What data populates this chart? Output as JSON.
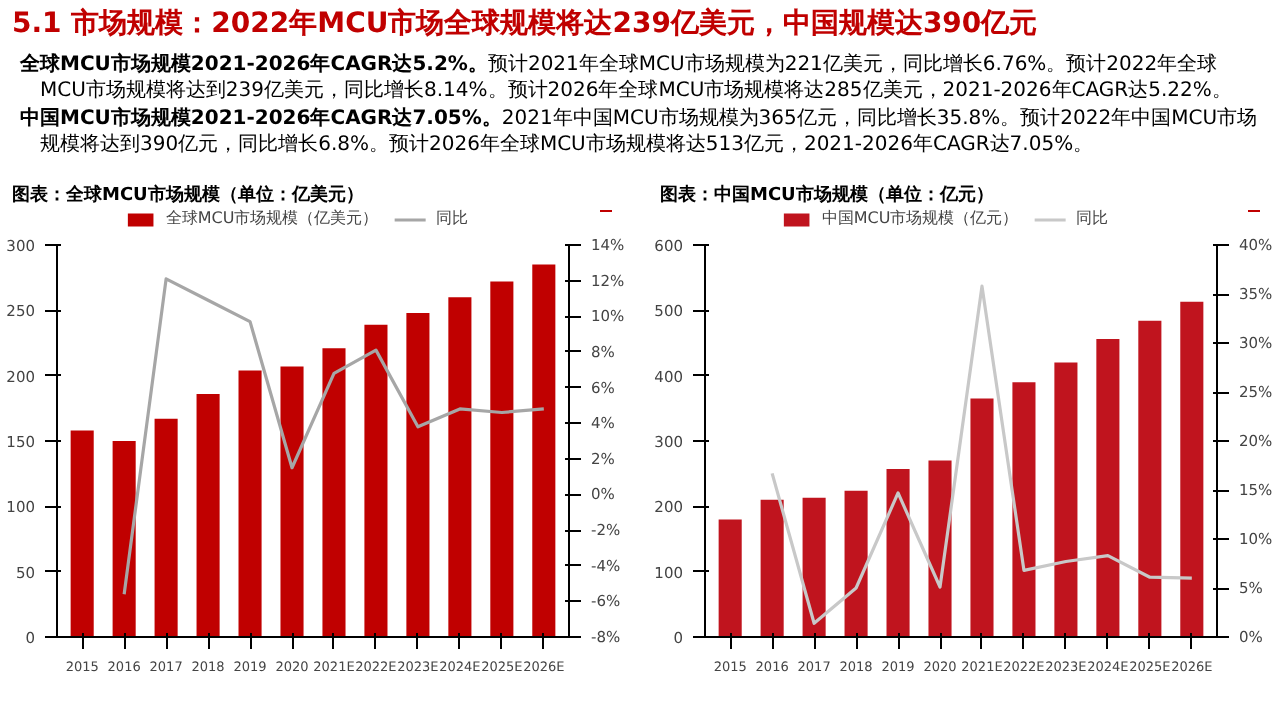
{
  "chart_data": [
    {
      "type": "other",
      "title": "5.1 市场规模：2022年MCU市场全球规模将达239亿美元，中国规模达390亿元",
      "annotations": [
        "全球MCU市场规模2021-2026年CAGR达5.2%。预计2021年全球MCU市场规模为221亿美元，同比增长6.76%。预计2022年全球MCU市场规模将达到239亿美元，同比增长8.14%。预计2026年全球MCU市场规模将达285亿美元，2021-2026年CAGR达5.22%。",
        "中国MCU市场规模2021-2026年CAGR达7.05%。2021年中国MCU市场规模为365亿元，同比增长35.8%。预计2022年中国MCU市场规模将达到390亿元，同比增长6.8%。预计2026年全球MCU市场规模将达513亿元，2021-2026年CAGR达7.05%。"
      ]
    },
    {
      "type": "bar",
      "title": "图表：全球MCU市场规模（单位：亿美元）",
      "categories": [
        "2015",
        "2016",
        "2017",
        "2018",
        "2019",
        "2020",
        "2021E",
        "2022E",
        "2023E",
        "2024E",
        "2025E",
        "2026E"
      ],
      "series": [
        {
          "name": "全球MCU市场规模（亿美元）",
          "type": "bar",
          "color": "#c00000",
          "values": [
            158,
            150,
            167,
            186,
            204,
            207,
            221,
            239,
            248,
            260,
            272,
            285
          ]
        },
        {
          "name": "同比",
          "type": "line",
          "axis": "y2",
          "color": "#a6a6a6",
          "values": [
            null,
            -5.6,
            12.1,
            10.9,
            9.7,
            1.5,
            6.8,
            8.1,
            3.8,
            4.8,
            4.6,
            4.8
          ]
        }
      ],
      "ylim": [
        0,
        300
      ],
      "yticks": [
        0,
        50,
        100,
        150,
        200,
        250,
        300
      ],
      "y2lim": [
        -8,
        14
      ],
      "y2ticks": [
        {
          "value": -8,
          "label": "-8%"
        },
        {
          "value": -6,
          "label": "-6%"
        },
        {
          "value": -4,
          "label": "-4%"
        },
        {
          "value": -2,
          "label": "-2%"
        },
        {
          "value": 0,
          "label": "0%"
        },
        {
          "value": 2,
          "label": "2%"
        },
        {
          "value": 4,
          "label": "4%"
        },
        {
          "value": 6,
          "label": "6%"
        },
        {
          "value": 8,
          "label": "8%"
        },
        {
          "value": 10,
          "label": "10%"
        },
        {
          "value": 12,
          "label": "12%"
        },
        {
          "value": 14,
          "label": "14%"
        }
      ],
      "legend": "top",
      "grid": false
    },
    {
      "type": "bar",
      "title": "图表：中国MCU市场规模（单位：亿元）",
      "categories": [
        "2015",
        "2016",
        "2017",
        "2018",
        "2019",
        "2020",
        "2021E",
        "2022E",
        "2023E",
        "2024E",
        "2025E",
        "2026E"
      ],
      "series": [
        {
          "name": "中国MCU市场规模（亿元）",
          "type": "bar",
          "color": "#c0141e",
          "values": [
            180,
            210,
            213,
            224,
            257,
            270,
            365,
            390,
            420,
            456,
            484,
            513
          ]
        },
        {
          "name": "同比",
          "type": "line",
          "axis": "y2",
          "color": "#c8c8c8",
          "values": [
            null,
            16.7,
            1.4,
            5.0,
            14.7,
            5.1,
            35.8,
            6.8,
            7.7,
            8.3,
            6.1,
            6.0
          ]
        }
      ],
      "ylim": [
        0,
        600
      ],
      "yticks": [
        0,
        100,
        200,
        300,
        400,
        500,
        600
      ],
      "y2lim": [
        0,
        40
      ],
      "y2ticks": [
        {
          "value": 0,
          "label": "0%"
        },
        {
          "value": 5,
          "label": "5%"
        },
        {
          "value": 10,
          "label": "10%"
        },
        {
          "value": 15,
          "label": "15%"
        },
        {
          "value": 20,
          "label": "20%"
        },
        {
          "value": 25,
          "label": "25%"
        },
        {
          "value": 30,
          "label": "30%"
        },
        {
          "value": 35,
          "label": "35%"
        },
        {
          "value": 40,
          "label": "40%"
        }
      ],
      "legend": "top",
      "grid": false
    }
  ]
}
